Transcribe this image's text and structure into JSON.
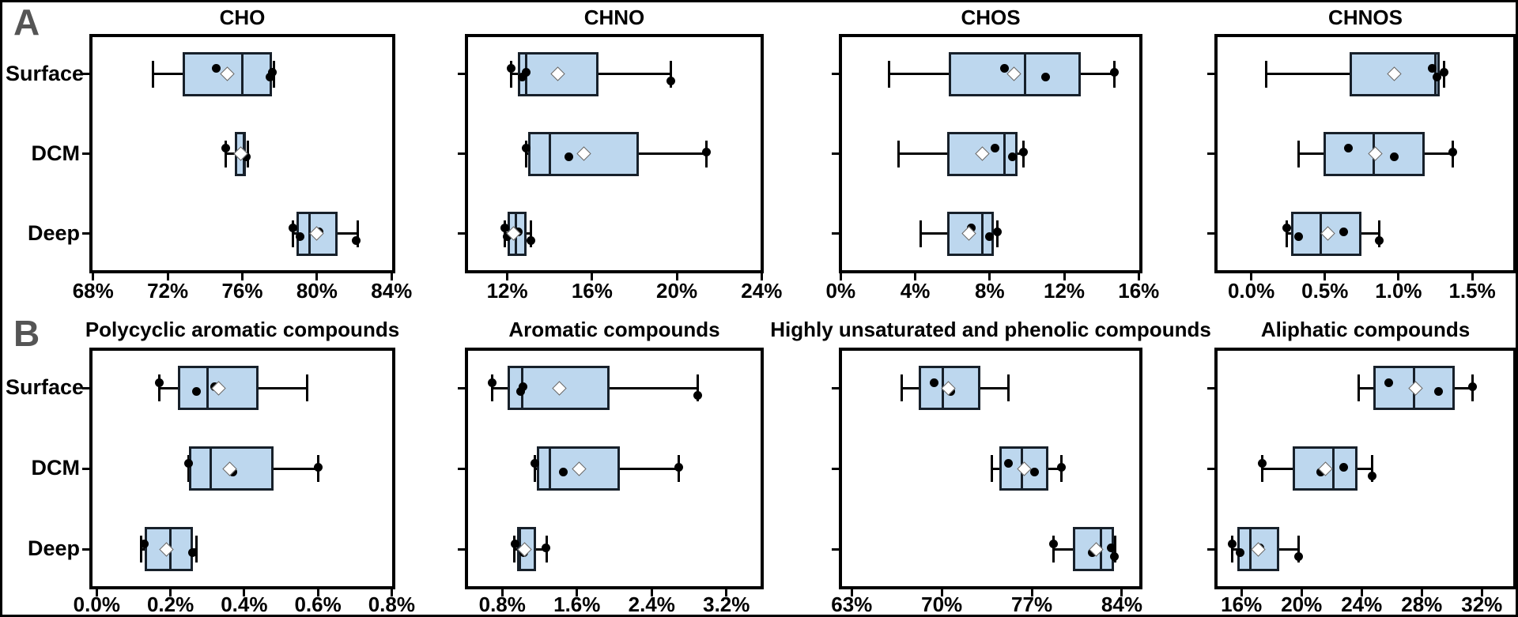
{
  "figure": {
    "panel_a_label": "A",
    "panel_b_label": "B",
    "category_labels": [
      "Surface",
      "DCM",
      "Deep"
    ],
    "colors": {
      "background": "#FFFFFF",
      "box_fill": "#BDD7EE",
      "box_border": "#17202A",
      "line": "#000000",
      "dot": "#000000",
      "mean_marker": "#FFFFFF",
      "panel_letter": "#555555"
    }
  },
  "chart_data": [
    {
      "row": "A",
      "type": "box",
      "orientation": "horizontal",
      "title": "CHO",
      "categories": [
        "Surface",
        "DCM",
        "Deep"
      ],
      "x_unit": "%",
      "xlim": [
        67.8,
        84.2
      ],
      "xticks": [
        68,
        72,
        76,
        80,
        84
      ],
      "xtick_labels": [
        "68%",
        "72%",
        "76%",
        "80%",
        "84%"
      ],
      "series": [
        {
          "category": "Surface",
          "whisker_low": 71.2,
          "q1": 72.8,
          "median": 76.0,
          "q3": 77.6,
          "whisker_high": 77.7,
          "mean": 75.2,
          "points": [
            74.6,
            77.5,
            77.6
          ]
        },
        {
          "category": "DCM",
          "whisker_low": 75.1,
          "q1": 75.6,
          "median": 76.1,
          "q3": 76.2,
          "whisker_high": 76.3,
          "mean": 75.9,
          "points": [
            75.1,
            76.2
          ]
        },
        {
          "category": "Deep",
          "whisker_low": 78.7,
          "q1": 78.9,
          "median": 79.6,
          "q3": 81.1,
          "whisker_high": 82.2,
          "mean": 80.0,
          "points": [
            78.7,
            79.1,
            80.1,
            82.1
          ]
        }
      ]
    },
    {
      "row": "A",
      "type": "box",
      "orientation": "horizontal",
      "title": "CHNO",
      "categories": [
        "Surface",
        "DCM",
        "Deep"
      ],
      "x_unit": "%",
      "xlim": [
        10.0,
        24.1
      ],
      "xticks": [
        12,
        16,
        20,
        24
      ],
      "xtick_labels": [
        "12%",
        "16%",
        "20%",
        "24%"
      ],
      "series": [
        {
          "category": "Surface",
          "whisker_low": 12.2,
          "q1": 12.5,
          "median": 12.9,
          "q3": 16.3,
          "whisker_high": 19.7,
          "mean": 14.4,
          "points": [
            12.2,
            12.7,
            12.9,
            19.7
          ]
        },
        {
          "category": "DCM",
          "whisker_low": 12.9,
          "q1": 13.0,
          "median": 14.0,
          "q3": 18.2,
          "whisker_high": 21.4,
          "mean": 15.6,
          "points": [
            12.9,
            14.9,
            21.4
          ]
        },
        {
          "category": "Deep",
          "whisker_low": 11.9,
          "q1": 12.0,
          "median": 12.4,
          "q3": 12.9,
          "whisker_high": 13.1,
          "mean": 12.3,
          "points": [
            11.9,
            12.0,
            12.5,
            13.1
          ]
        }
      ]
    },
    {
      "row": "A",
      "type": "box",
      "orientation": "horizontal",
      "title": "CHOS",
      "categories": [
        "Surface",
        "DCM",
        "Deep"
      ],
      "x_unit": "%",
      "xlim": [
        -0.1,
        16.2
      ],
      "xticks": [
        0,
        4,
        8,
        12,
        16
      ],
      "xtick_labels": [
        "0%",
        "4%",
        "8%",
        "12%",
        "16%"
      ],
      "series": [
        {
          "category": "Surface",
          "whisker_low": 2.6,
          "q1": 5.8,
          "median": 9.9,
          "q3": 12.9,
          "whisker_high": 14.7,
          "mean": 9.3,
          "points": [
            8.8,
            11.0,
            14.7
          ]
        },
        {
          "category": "DCM",
          "whisker_low": 3.1,
          "q1": 5.7,
          "median": 8.8,
          "q3": 9.5,
          "whisker_high": 9.8,
          "mean": 7.6,
          "points": [
            8.3,
            9.2,
            9.8
          ]
        },
        {
          "category": "Deep",
          "whisker_low": 4.3,
          "q1": 5.7,
          "median": 7.6,
          "q3": 8.2,
          "whisker_high": 8.4,
          "mean": 6.9,
          "points": [
            7.0,
            8.0,
            8.4
          ]
        }
      ]
    },
    {
      "row": "A",
      "type": "box",
      "orientation": "horizontal",
      "title": "CHNOS",
      "categories": [
        "Surface",
        "DCM",
        "Deep"
      ],
      "x_unit": "%",
      "xlim": [
        -0.25,
        1.8
      ],
      "xticks": [
        0.0,
        0.5,
        1.0,
        1.5
      ],
      "xtick_labels": [
        "0.0%",
        "0.5%",
        "1.0%",
        "1.5%"
      ],
      "series": [
        {
          "category": "Surface",
          "whisker_low": 0.1,
          "q1": 0.67,
          "median": 1.25,
          "q3": 1.28,
          "whisker_high": 1.31,
          "mean": 0.97,
          "points": [
            1.23,
            1.26,
            1.31
          ]
        },
        {
          "category": "DCM",
          "whisker_low": 0.32,
          "q1": 0.49,
          "median": 0.83,
          "q3": 1.18,
          "whisker_high": 1.37,
          "mean": 0.84,
          "points": [
            0.66,
            0.97,
            1.37
          ]
        },
        {
          "category": "Deep",
          "whisker_low": 0.24,
          "q1": 0.27,
          "median": 0.47,
          "q3": 0.75,
          "whisker_high": 0.87,
          "mean": 0.52,
          "points": [
            0.24,
            0.32,
            0.63,
            0.87
          ]
        }
      ]
    },
    {
      "row": "B",
      "type": "box",
      "orientation": "horizontal",
      "title": "Polycyclic aromatic compounds",
      "categories": [
        "Surface",
        "DCM",
        "Deep"
      ],
      "x_unit": "%",
      "xlim": [
        -0.02,
        0.81
      ],
      "xticks": [
        0.0,
        0.2,
        0.4,
        0.6,
        0.8
      ],
      "xtick_labels": [
        "0.0%",
        "0.2%",
        "0.4%",
        "0.6%",
        "0.8%"
      ],
      "series": [
        {
          "category": "Surface",
          "whisker_low": 0.17,
          "q1": 0.22,
          "median": 0.3,
          "q3": 0.44,
          "whisker_high": 0.57,
          "mean": 0.33,
          "points": [
            0.17,
            0.27,
            0.32
          ]
        },
        {
          "category": "DCM",
          "whisker_low": 0.25,
          "q1": 0.25,
          "median": 0.31,
          "q3": 0.48,
          "whisker_high": 0.6,
          "mean": 0.36,
          "points": [
            0.25,
            0.37,
            0.6
          ]
        },
        {
          "category": "Deep",
          "whisker_low": 0.12,
          "q1": 0.13,
          "median": 0.2,
          "q3": 0.26,
          "whisker_high": 0.27,
          "mean": 0.19,
          "points": [
            0.13,
            0.26
          ]
        }
      ]
    },
    {
      "row": "B",
      "type": "box",
      "orientation": "horizontal",
      "title": "Aromatic compounds",
      "categories": [
        "Surface",
        "DCM",
        "Deep"
      ],
      "x_unit": "%",
      "xlim": [
        0.4,
        3.6
      ],
      "xticks": [
        0.8,
        1.6,
        2.4,
        3.2
      ],
      "xtick_labels": [
        "0.8%",
        "1.6%",
        "2.4%",
        "3.2%"
      ],
      "series": [
        {
          "category": "Surface",
          "whisker_low": 0.69,
          "q1": 0.86,
          "median": 1.01,
          "q3": 1.95,
          "whisker_high": 2.89,
          "mean": 1.41,
          "points": [
            0.69,
            1.0,
            1.02,
            2.89
          ]
        },
        {
          "category": "DCM",
          "whisker_low": 1.15,
          "q1": 1.17,
          "median": 1.31,
          "q3": 2.06,
          "whisker_high": 2.69,
          "mean": 1.62,
          "points": [
            1.15,
            1.45,
            2.69
          ]
        },
        {
          "category": "Deep",
          "whisker_low": 0.93,
          "q1": 0.96,
          "median": 0.99,
          "q3": 1.16,
          "whisker_high": 1.28,
          "mean": 1.04,
          "points": [
            0.94,
            1.03,
            1.27
          ]
        }
      ]
    },
    {
      "row": "B",
      "type": "box",
      "orientation": "horizontal",
      "title": "Highly unsaturated and phenolic compounds",
      "categories": [
        "Surface",
        "DCM",
        "Deep"
      ],
      "x_unit": "%",
      "xlim": [
        62.0,
        85.6
      ],
      "xticks": [
        63,
        70,
        77,
        84
      ],
      "xtick_labels": [
        "63%",
        "70%",
        "77%",
        "84%"
      ],
      "series": [
        {
          "category": "Surface",
          "whisker_low": 66.9,
          "q1": 68.2,
          "median": 70.1,
          "q3": 73.0,
          "whisker_high": 75.2,
          "mean": 70.5,
          "points": [
            69.4,
            70.7
          ]
        },
        {
          "category": "DCM",
          "whisker_low": 73.9,
          "q1": 74.5,
          "median": 76.2,
          "q3": 78.3,
          "whisker_high": 79.3,
          "mean": 76.4,
          "points": [
            75.2,
            77.2,
            79.3
          ]
        },
        {
          "category": "Deep",
          "whisker_low": 78.7,
          "q1": 80.2,
          "median": 82.4,
          "q3": 83.4,
          "whisker_high": 83.5,
          "mean": 82.0,
          "points": [
            78.7,
            81.7,
            83.2,
            83.4
          ]
        }
      ]
    },
    {
      "row": "B",
      "type": "box",
      "orientation": "horizontal",
      "title": "Aliphatic compounds",
      "categories": [
        "Surface",
        "DCM",
        "Deep"
      ],
      "x_unit": "%",
      "xlim": [
        14.2,
        34.3
      ],
      "xticks": [
        16,
        20,
        24,
        28,
        32
      ],
      "xtick_labels": [
        "16%",
        "20%",
        "24%",
        "28%",
        "32%"
      ],
      "series": [
        {
          "category": "Surface",
          "whisker_low": 23.8,
          "q1": 24.8,
          "median": 27.5,
          "q3": 30.2,
          "whisker_high": 31.4,
          "mean": 27.6,
          "points": [
            25.8,
            29.1,
            31.4
          ]
        },
        {
          "category": "DCM",
          "whisker_low": 17.4,
          "q1": 19.4,
          "median": 22.1,
          "q3": 23.7,
          "whisker_high": 24.7,
          "mean": 21.6,
          "points": [
            17.4,
            21.3,
            22.8,
            24.7
          ]
        },
        {
          "category": "Deep",
          "whisker_low": 15.4,
          "q1": 15.7,
          "median": 16.6,
          "q3": 18.5,
          "whisker_high": 19.8,
          "mean": 17.1,
          "points": [
            15.4,
            15.9,
            17.2,
            19.8
          ]
        }
      ]
    }
  ]
}
